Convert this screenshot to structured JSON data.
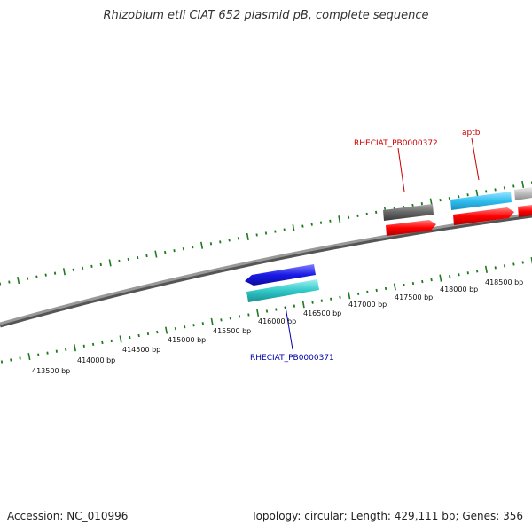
{
  "title": "Rhizobium etli CIAT 652 plasmid pB, complete sequence",
  "footer": {
    "accession": "Accession: NC_010996",
    "summary": "Topology: circular; Length: 429,111 bp; Genes: 356"
  },
  "tick_labels": [
    "413500 bp",
    "414000 bp",
    "414500 bp",
    "415000 bp",
    "415500 bp",
    "416000 bp",
    "416500 bp",
    "417000 bp",
    "417500 bp",
    "418000 bp",
    "418500 bp"
  ],
  "features": [
    {
      "name": "RHECIAT_PB0000372",
      "color": "#cc0000"
    },
    {
      "name": "aptb",
      "color": "#cc0000"
    },
    {
      "name": "RHECIAT_PB0000371",
      "color": "#0000aa"
    }
  ],
  "colors": {
    "backbone": "#888888",
    "tick": "#1e7a1e",
    "forward_gene": "#ff0000",
    "forward_gene_alt": "#3ec8f0",
    "reverse_gene": "#1a1ae6",
    "reverse_gene_alt": "#30c8c8",
    "pseudo_gene": "#666666",
    "pseudo_gene_light": "#bbbbbb"
  }
}
